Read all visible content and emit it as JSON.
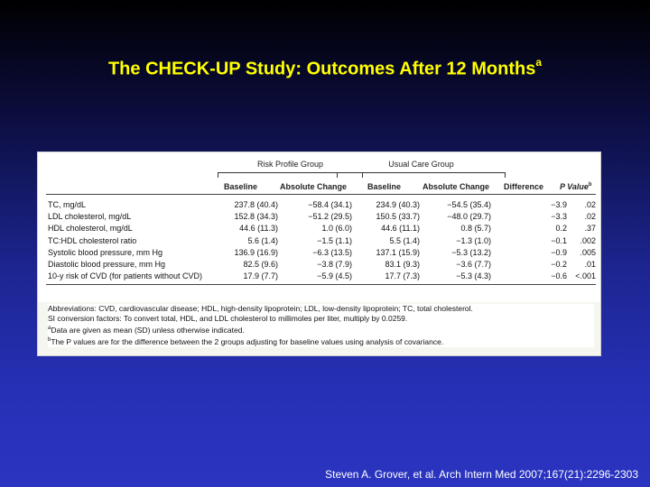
{
  "slide": {
    "title": "The CHECK-UP Study: Outcomes After 12 Months",
    "title_sup": "a",
    "citation": "Steven A. Grover, et al. Arch Intern Med 2007;167(21):2296-2303"
  },
  "table": {
    "groups": [
      "Risk Profile Group",
      "Usual Care Group"
    ],
    "headers": [
      "Baseline",
      "Absolute Change",
      "Baseline",
      "Absolute Change",
      "Difference",
      "P Value"
    ],
    "p_value_sup": "b",
    "rows": [
      [
        "TC, mg/dL",
        "237.8 (40.4)",
        "−58.4 (34.1)",
        "234.9 (40.3)",
        "−54.5 (35.4)",
        "−3.9",
        ".02"
      ],
      [
        "LDL cholesterol, mg/dL",
        "152.8 (34.3)",
        "−51.2 (29.5)",
        "150.5 (33.7)",
        "−48.0 (29.7)",
        "−3.3",
        ".02"
      ],
      [
        "HDL cholesterol, mg/dL",
        "44.6 (11.3)",
        "1.0 (6.0)",
        "44.6 (11.1)",
        "0.8 (5.7)",
        "0.2",
        ".37"
      ],
      [
        "TC:HDL cholesterol ratio",
        "5.6 (1.4)",
        "−1.5 (1.1)",
        "5.5 (1.4)",
        "−1.3 (1.0)",
        "−0.1",
        ".002"
      ],
      [
        "Systolic blood pressure, mm Hg",
        "136.9 (16.9)",
        "−6.3 (13.5)",
        "137.1 (15.9)",
        "−5.3 (13.2)",
        "−0.9",
        ".005"
      ],
      [
        "Diastolic blood pressure, mm Hg",
        "82.5 (9.6)",
        "−3.8 (7.9)",
        "83.1 (9.3)",
        "−3.6 (7.7)",
        "−0.2",
        ".01"
      ],
      [
        "10-y risk of CVD (for patients without CVD)",
        "17.9 (7.7)",
        "−5.9 (4.5)",
        "17.7 (7.3)",
        "−5.3 (4.3)",
        "−0.6",
        "<.001"
      ]
    ],
    "footnotes": [
      "Abbreviations: CVD, cardiovascular disease; HDL, high-density lipoprotein; LDL, low-density lipoprotein; TC, total cholesterol.",
      "SI conversion factors: To convert total, HDL, and LDL cholesterol to millimoles per liter, multiply by 0.0259.",
      "Data are given as mean (SD) unless otherwise indicated.",
      "The P values are for the difference between the 2 groups adjusting for baseline values using analysis of covariance."
    ],
    "footnote_marks": [
      "a",
      "b"
    ]
  }
}
